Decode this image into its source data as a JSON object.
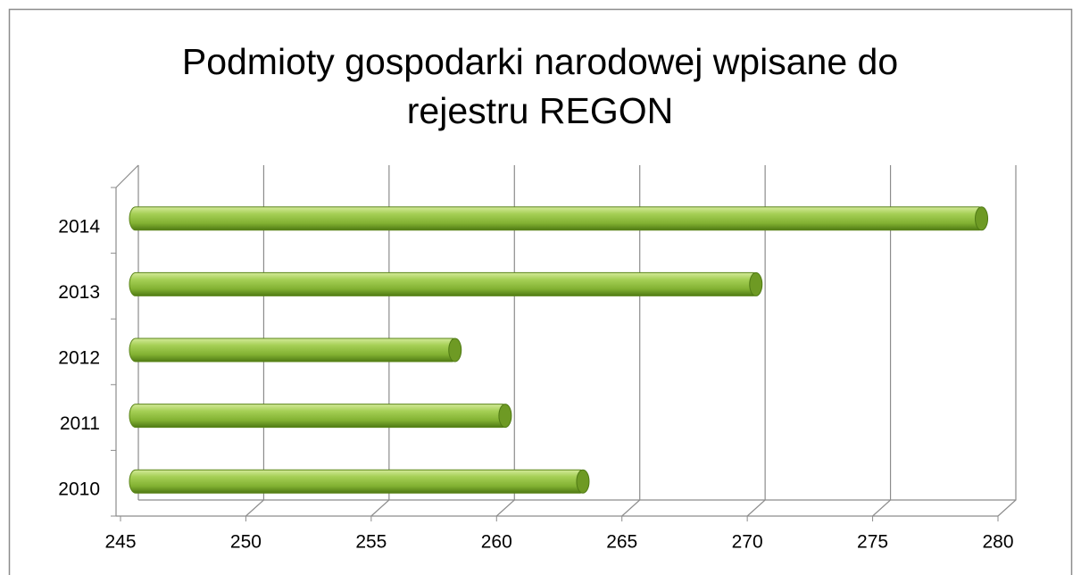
{
  "chart_data": {
    "type": "bar",
    "orientation": "horizontal",
    "title": [
      "Podmioty gospodarki narodowej wpisane do",
      "rejestru REGON"
    ],
    "categories": [
      "2010",
      "2011",
      "2012",
      "2013",
      "2014"
    ],
    "values": [
      263.3,
      260.2,
      258.2,
      270.2,
      279.2
    ],
    "color": "#8fbf3f",
    "xlim": [
      245,
      280
    ],
    "xticks": [
      245,
      250,
      255,
      260,
      265,
      270,
      275,
      280
    ],
    "grid": true
  }
}
